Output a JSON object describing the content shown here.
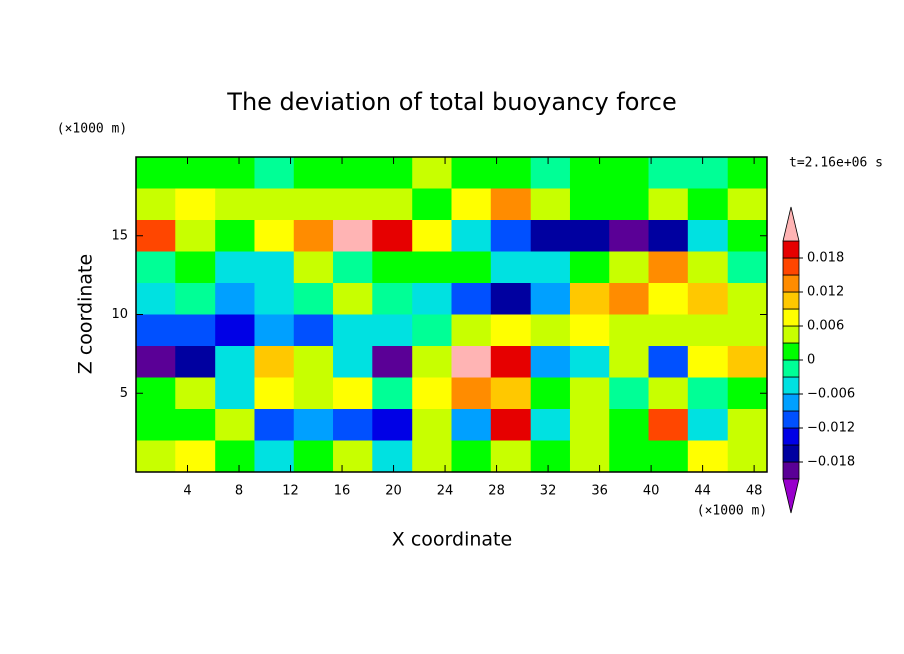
{
  "chart_data": {
    "type": "contour",
    "title": "The deviation of total buoyancy force",
    "x_label": "X coordinate",
    "y_label": "Z coordinate",
    "x_unit": "(×1000 m)",
    "y_unit": "(×1000 m)",
    "time_label": "t=2.16e+06 s",
    "xlim": [
      0,
      49
    ],
    "ylim": [
      0,
      20
    ],
    "xticks": [
      4,
      8,
      12,
      16,
      20,
      24,
      28,
      32,
      36,
      40,
      44,
      48
    ],
    "yticks": [
      5,
      10,
      15
    ],
    "x": [
      1.5,
      4.6,
      7.7,
      10.7,
      13.8,
      16.8,
      19.9,
      23.0,
      26.0,
      29.1,
      32.2,
      35.2,
      38.3,
      41.3,
      44.4,
      47.5
    ],
    "y": [
      19,
      17,
      15,
      13,
      11,
      9,
      7,
      5,
      3,
      1
    ],
    "z": [
      [
        0.002,
        0.001,
        0.0,
        -0.002,
        0.001,
        0.002,
        0.001,
        0.003,
        0.002,
        0.001,
        -0.001,
        0.001,
        0.002,
        -0.002,
        -0.001,
        0.001
      ],
      [
        0.004,
        0.006,
        0.004,
        0.003,
        0.005,
        0.004,
        0.003,
        0.002,
        0.007,
        0.012,
        0.004,
        0.002,
        0.001,
        0.003,
        0.002,
        0.004
      ],
      [
        0.016,
        0.004,
        0.002,
        0.006,
        0.014,
        0.022,
        0.018,
        0.008,
        -0.004,
        -0.012,
        -0.016,
        -0.018,
        -0.019,
        -0.016,
        -0.004,
        0.002
      ],
      [
        -0.002,
        0.002,
        -0.004,
        -0.006,
        0.004,
        -0.003,
        0.001,
        0.002,
        0.0,
        -0.006,
        -0.004,
        0.001,
        0.004,
        0.012,
        0.003,
        -0.002
      ],
      [
        -0.004,
        -0.002,
        -0.008,
        -0.006,
        -0.002,
        0.005,
        -0.003,
        -0.006,
        -0.012,
        -0.016,
        -0.008,
        0.01,
        0.013,
        0.008,
        0.009,
        0.004
      ],
      [
        -0.012,
        -0.01,
        -0.013,
        -0.009,
        -0.01,
        -0.006,
        -0.004,
        -0.002,
        0.003,
        0.006,
        0.004,
        0.007,
        0.005,
        0.003,
        0.005,
        0.004
      ],
      [
        -0.02,
        -0.018,
        -0.004,
        0.01,
        0.004,
        -0.006,
        -0.019,
        0.005,
        0.022,
        0.018,
        -0.008,
        -0.004,
        0.004,
        -0.012,
        0.006,
        0.01
      ],
      [
        0.001,
        0.003,
        -0.004,
        0.008,
        0.004,
        0.006,
        -0.003,
        0.006,
        0.012,
        0.009,
        0.002,
        0.004,
        -0.003,
        0.003,
        -0.002,
        0.002
      ],
      [
        0.001,
        0.002,
        0.004,
        -0.012,
        -0.008,
        -0.01,
        -0.014,
        0.004,
        -0.008,
        0.02,
        -0.006,
        0.003,
        0.002,
        0.015,
        -0.004,
        0.003
      ],
      [
        0.003,
        0.006,
        0.002,
        -0.004,
        0.002,
        0.004,
        -0.006,
        0.005,
        0.001,
        0.003,
        0.002,
        0.004,
        0.001,
        0.002,
        0.006,
        0.004
      ]
    ],
    "levels": [
      -0.021,
      -0.018,
      -0.015,
      -0.012,
      -0.009,
      -0.006,
      -0.003,
      0,
      0.003,
      0.006,
      0.009,
      0.012,
      0.015,
      0.018,
      0.021
    ],
    "colors": [
      "#9900cc",
      "#5a0096",
      "#0000a0",
      "#0000e6",
      "#0050ff",
      "#00a0ff",
      "#00e1e1",
      "#00ff96",
      "#00ff00",
      "#c8ff00",
      "#ffff00",
      "#ffc800",
      "#ff8c00",
      "#ff4600",
      "#e60000",
      "#ffb4b4"
    ],
    "colorbar_ticks": [
      0.018,
      0.012,
      0.006,
      0,
      {
        "value": -0.006,
        "label": "−0.006"
      },
      {
        "value": -0.012,
        "label": "−0.012"
      },
      {
        "value": -0.018,
        "label": "−0.018"
      }
    ]
  }
}
